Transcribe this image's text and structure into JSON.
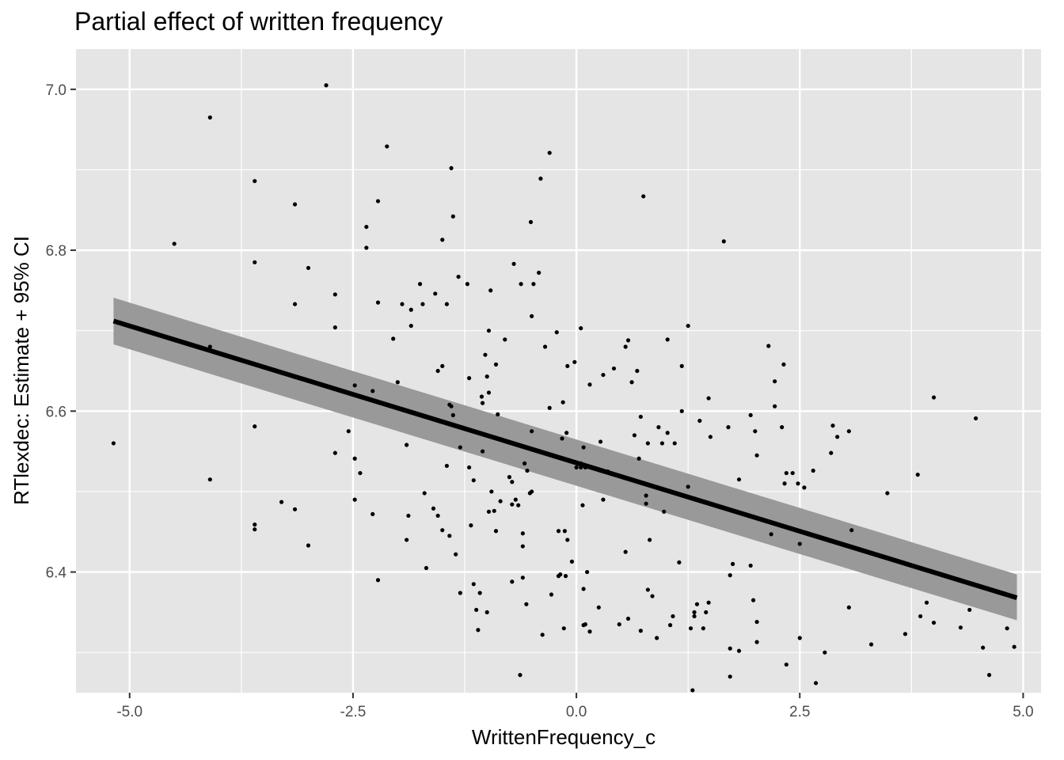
{
  "chart_data": {
    "type": "scatter",
    "title": "Partial effect of written frequency",
    "xlabel": "WrittenFrequency_c",
    "ylabel": "RTlexdec: Estimate + 95% CI",
    "xlim": [
      -5.6,
      5.2
    ],
    "ylim": [
      6.25,
      7.05
    ],
    "x_ticks": [
      -5.0,
      -2.5,
      0.0,
      2.5,
      5.0
    ],
    "x_tick_labels": [
      "-5.0",
      "-2.5",
      "0.0",
      "2.5",
      "5.0"
    ],
    "y_ticks": [
      6.4,
      6.6,
      6.8,
      7.0
    ],
    "y_tick_labels": [
      "6.4",
      "6.6",
      "6.8",
      "7.0"
    ],
    "grid": true,
    "colors": {
      "panel_background": "#e5e5e5",
      "grid": "#ffffff",
      "points": "#000000",
      "fit_line": "#000000",
      "ribbon": "#999999"
    },
    "fit": {
      "x": [
        -5.18,
        4.93
      ],
      "estimate": [
        6.712,
        6.368
      ],
      "lower": [
        6.683,
        6.34
      ],
      "upper": [
        6.741,
        6.397
      ]
    },
    "points": [
      [
        -5.18,
        6.56
      ],
      [
        -4.5,
        6.808
      ],
      [
        -4.1,
        6.965
      ],
      [
        -4.1,
        6.68
      ],
      [
        -4.1,
        6.515
      ],
      [
        -3.6,
        6.886
      ],
      [
        -3.6,
        6.785
      ],
      [
        -3.6,
        6.581
      ],
      [
        -3.6,
        6.459
      ],
      [
        -3.6,
        6.453
      ],
      [
        -3.3,
        6.487
      ],
      [
        -3.15,
        6.857
      ],
      [
        -3.15,
        6.733
      ],
      [
        -3.15,
        6.478
      ],
      [
        -3.0,
        6.778
      ],
      [
        -3.0,
        6.433
      ],
      [
        -2.8,
        7.005
      ],
      [
        -2.7,
        6.745
      ],
      [
        -2.7,
        6.704
      ],
      [
        -2.7,
        6.548
      ],
      [
        -2.55,
        6.575
      ],
      [
        -2.48,
        6.632
      ],
      [
        -2.48,
        6.541
      ],
      [
        -2.48,
        6.49
      ],
      [
        -2.42,
        6.523
      ],
      [
        -2.35,
        6.829
      ],
      [
        -2.35,
        6.803
      ],
      [
        -2.28,
        6.625
      ],
      [
        -2.28,
        6.472
      ],
      [
        -2.22,
        6.861
      ],
      [
        -2.22,
        6.735
      ],
      [
        -2.22,
        6.39
      ],
      [
        -2.12,
        6.929
      ],
      [
        -2.05,
        6.69
      ],
      [
        -2.0,
        6.636
      ],
      [
        -1.95,
        6.733
      ],
      [
        -1.9,
        6.558
      ],
      [
        -1.9,
        6.44
      ],
      [
        -1.88,
        6.47
      ],
      [
        -1.85,
        6.726
      ],
      [
        -1.85,
        6.706
      ],
      [
        -1.75,
        6.758
      ],
      [
        -1.72,
        6.733
      ],
      [
        -1.7,
        6.498
      ],
      [
        -1.68,
        6.405
      ],
      [
        -1.6,
        6.479
      ],
      [
        -1.58,
        6.746
      ],
      [
        -1.55,
        6.65
      ],
      [
        -1.55,
        6.47
      ],
      [
        -1.5,
        6.813
      ],
      [
        -1.5,
        6.656
      ],
      [
        -1.5,
        6.452
      ],
      [
        -1.45,
        6.733
      ],
      [
        -1.45,
        6.532
      ],
      [
        -1.42,
        6.608
      ],
      [
        -1.42,
        6.445
      ],
      [
        -1.4,
        6.902
      ],
      [
        -1.4,
        6.606
      ],
      [
        -1.38,
        6.842
      ],
      [
        -1.38,
        6.595
      ],
      [
        -1.35,
        6.422
      ],
      [
        -1.32,
        6.767
      ],
      [
        -1.3,
        6.555
      ],
      [
        -1.3,
        6.374
      ],
      [
        -1.22,
        6.758
      ],
      [
        -1.2,
        6.641
      ],
      [
        -1.2,
        6.53
      ],
      [
        -1.18,
        6.458
      ],
      [
        -1.15,
        6.514
      ],
      [
        -1.15,
        6.385
      ],
      [
        -1.12,
        6.353
      ],
      [
        -1.1,
        6.328
      ],
      [
        -1.08,
        6.374
      ],
      [
        -1.06,
        6.618
      ],
      [
        -1.05,
        6.61
      ],
      [
        -1.05,
        6.55
      ],
      [
        -1.02,
        6.67
      ],
      [
        -1.0,
        6.643
      ],
      [
        -1.0,
        6.35
      ],
      [
        -0.98,
        6.7
      ],
      [
        -0.98,
        6.623
      ],
      [
        -0.98,
        6.475
      ],
      [
        -0.96,
        6.75
      ],
      [
        -0.95,
        6.5
      ],
      [
        -0.92,
        6.476
      ],
      [
        -0.9,
        6.658
      ],
      [
        -0.9,
        6.451
      ],
      [
        -0.88,
        6.596
      ],
      [
        -0.85,
        6.488
      ],
      [
        -0.8,
        6.689
      ],
      [
        -0.75,
        6.518
      ],
      [
        -0.72,
        6.484
      ],
      [
        -0.72,
        6.512
      ],
      [
        -0.72,
        6.388
      ],
      [
        -0.7,
        6.783
      ],
      [
        -0.68,
        6.49
      ],
      [
        -0.65,
        6.483
      ],
      [
        -0.63,
        6.272
      ],
      [
        -0.62,
        6.758
      ],
      [
        -0.6,
        6.448
      ],
      [
        -0.6,
        6.432
      ],
      [
        -0.6,
        6.393
      ],
      [
        -0.58,
        6.535
      ],
      [
        -0.56,
        6.36
      ],
      [
        -0.55,
        6.526
      ],
      [
        -0.52,
        6.498
      ],
      [
        -0.51,
        6.835
      ],
      [
        -0.5,
        6.718
      ],
      [
        -0.5,
        6.575
      ],
      [
        -0.5,
        6.5
      ],
      [
        -0.48,
        6.758
      ],
      [
        -0.42,
        6.772
      ],
      [
        -0.4,
        6.889
      ],
      [
        -0.38,
        6.322
      ],
      [
        -0.35,
        6.68
      ],
      [
        -0.3,
        6.921
      ],
      [
        -0.3,
        6.604
      ],
      [
        -0.28,
        6.372
      ],
      [
        -0.22,
        6.698
      ],
      [
        -0.2,
        6.451
      ],
      [
        -0.2,
        6.395
      ],
      [
        -0.18,
        6.397
      ],
      [
        -0.16,
        6.566
      ],
      [
        -0.15,
        6.611
      ],
      [
        -0.14,
        6.33
      ],
      [
        -0.13,
        6.451
      ],
      [
        -0.12,
        6.395
      ],
      [
        -0.11,
        6.573
      ],
      [
        -0.1,
        6.656
      ],
      [
        -0.1,
        6.44
      ],
      [
        -0.05,
        6.413
      ],
      [
        -0.02,
        6.661
      ],
      [
        0.0,
        6.53
      ],
      [
        0.05,
        6.535
      ],
      [
        0.05,
        6.703
      ],
      [
        0.05,
        6.53
      ],
      [
        0.07,
        6.483
      ],
      [
        0.08,
        6.555
      ],
      [
        0.08,
        6.379
      ],
      [
        0.08,
        6.334
      ],
      [
        0.1,
        6.335
      ],
      [
        0.1,
        6.53
      ],
      [
        0.12,
        6.4
      ],
      [
        0.15,
        6.633
      ],
      [
        0.15,
        6.326
      ],
      [
        0.25,
        6.356
      ],
      [
        0.27,
        6.562
      ],
      [
        0.3,
        6.645
      ],
      [
        0.3,
        6.49
      ],
      [
        0.35,
        6.525
      ],
      [
        0.42,
        6.653
      ],
      [
        0.48,
        6.335
      ],
      [
        0.55,
        6.68
      ],
      [
        0.55,
        6.425
      ],
      [
        0.58,
        6.688
      ],
      [
        0.58,
        6.342
      ],
      [
        0.62,
        6.636
      ],
      [
        0.65,
        6.57
      ],
      [
        0.68,
        6.65
      ],
      [
        0.7,
        6.541
      ],
      [
        0.72,
        6.593
      ],
      [
        0.72,
        6.327
      ],
      [
        0.75,
        6.867
      ],
      [
        0.78,
        6.495
      ],
      [
        0.78,
        6.485
      ],
      [
        0.8,
        6.56
      ],
      [
        0.8,
        6.378
      ],
      [
        0.82,
        6.44
      ],
      [
        0.85,
        6.37
      ],
      [
        0.9,
        6.318
      ],
      [
        0.92,
        6.58
      ],
      [
        0.96,
        6.56
      ],
      [
        0.98,
        6.475
      ],
      [
        1.02,
        6.689
      ],
      [
        1.02,
        6.573
      ],
      [
        1.05,
        6.334
      ],
      [
        1.08,
        6.345
      ],
      [
        1.1,
        6.56
      ],
      [
        1.15,
        6.412
      ],
      [
        1.18,
        6.6
      ],
      [
        1.18,
        6.656
      ],
      [
        1.25,
        6.706
      ],
      [
        1.25,
        6.506
      ],
      [
        1.28,
        6.33
      ],
      [
        1.3,
        6.253
      ],
      [
        1.32,
        6.35
      ],
      [
        1.32,
        6.345
      ],
      [
        1.35,
        6.36
      ],
      [
        1.38,
        6.588
      ],
      [
        1.42,
        6.33
      ],
      [
        1.45,
        6.35
      ],
      [
        1.48,
        6.616
      ],
      [
        1.48,
        6.362
      ],
      [
        1.5,
        6.568
      ],
      [
        1.65,
        6.811
      ],
      [
        1.7,
        6.58
      ],
      [
        1.72,
        6.396
      ],
      [
        1.72,
        6.305
      ],
      [
        1.72,
        6.27
      ],
      [
        1.75,
        6.41
      ],
      [
        1.82,
        6.515
      ],
      [
        1.82,
        6.302
      ],
      [
        1.95,
        6.595
      ],
      [
        1.95,
        6.408
      ],
      [
        1.98,
        6.365
      ],
      [
        2.0,
        6.575
      ],
      [
        2.02,
        6.545
      ],
      [
        2.02,
        6.338
      ],
      [
        2.02,
        6.313
      ],
      [
        2.15,
        6.681
      ],
      [
        2.18,
        6.447
      ],
      [
        2.22,
        6.606
      ],
      [
        2.22,
        6.637
      ],
      [
        2.3,
        6.58
      ],
      [
        2.32,
        6.658
      ],
      [
        2.33,
        6.51
      ],
      [
        2.35,
        6.523
      ],
      [
        2.35,
        6.285
      ],
      [
        2.42,
        6.523
      ],
      [
        2.48,
        6.51
      ],
      [
        2.5,
        6.435
      ],
      [
        2.5,
        6.318
      ],
      [
        2.55,
        6.505
      ],
      [
        2.65,
        6.526
      ],
      [
        2.68,
        6.262
      ],
      [
        2.78,
        6.3
      ],
      [
        2.85,
        6.548
      ],
      [
        2.87,
        6.582
      ],
      [
        2.92,
        6.568
      ],
      [
        3.05,
        6.575
      ],
      [
        3.05,
        6.356
      ],
      [
        3.08,
        6.452
      ],
      [
        3.3,
        6.31
      ],
      [
        3.48,
        6.498
      ],
      [
        3.68,
        6.323
      ],
      [
        3.82,
        6.521
      ],
      [
        3.85,
        6.345
      ],
      [
        3.92,
        6.362
      ],
      [
        4.0,
        6.617
      ],
      [
        4.0,
        6.337
      ],
      [
        4.3,
        6.331
      ],
      [
        4.4,
        6.353
      ],
      [
        4.47,
        6.591
      ],
      [
        4.55,
        6.306
      ],
      [
        4.62,
        6.272
      ],
      [
        4.82,
        6.33
      ],
      [
        4.9,
        6.307
      ]
    ]
  }
}
